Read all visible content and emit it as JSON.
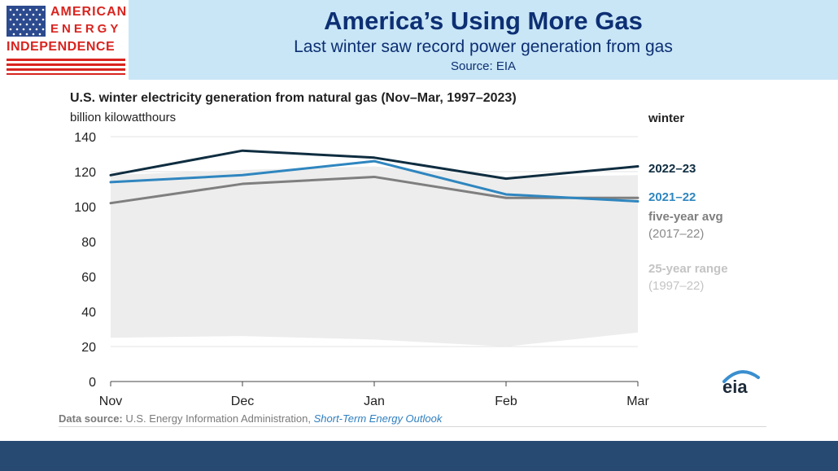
{
  "header": {
    "title": "America’s Using More Gas",
    "subtitle": "Last winter saw record power generation from gas",
    "source": "Source: EIA"
  },
  "logo": {
    "line1": "AMERICAN",
    "line2": "ENERGY",
    "line3": "INDEPENDENCE"
  },
  "colors": {
    "header_band": "#c9e6f6",
    "title_text": "#0d2f73",
    "logo_red": "#d9241f",
    "flag_blue": "#2c4a8e",
    "footer_band": "#274a72",
    "series_2022_23": "#0f2d40",
    "series_2021_22": "#2f86bf",
    "five_year_avg": "#7f7f7f",
    "range_fill": "#ededed"
  },
  "chart_data": {
    "type": "line",
    "title": "U.S. winter electricity generation from natural gas (Nov–Mar, 1997–2023)",
    "ylabel": "billion kilowatthours",
    "categories": [
      "Nov",
      "Dec",
      "Jan",
      "Feb",
      "Mar"
    ],
    "ylim": [
      0,
      140
    ],
    "yticks": [
      0,
      20,
      40,
      60,
      80,
      100,
      120,
      140
    ],
    "grid": true,
    "legend_title": "winter",
    "legend_position": "right",
    "series": [
      {
        "name": "2022–23",
        "values": [
          118,
          132,
          128,
          116,
          123
        ],
        "color": "#0f2d40"
      },
      {
        "name": "2021–22",
        "values": [
          114,
          118,
          126,
          107,
          103
        ],
        "color": "#2f86bf"
      },
      {
        "name": "five-year avg",
        "name_detail": "(2017–22)",
        "values": [
          102,
          113,
          117,
          105,
          105
        ],
        "color": "#7f7f7f"
      }
    ],
    "range": {
      "name": "25-year range",
      "name_detail": "(1997–22)",
      "upper": [
        118,
        121,
        123,
        117,
        118
      ],
      "lower": [
        25,
        26,
        24,
        20,
        28
      ],
      "color": "#ededed"
    }
  },
  "footnote": {
    "label": "Data source:",
    "text": "U.S. Energy Information Administration,",
    "publication": "Short-Term Energy Outlook"
  },
  "eia_logo_text": "eia"
}
